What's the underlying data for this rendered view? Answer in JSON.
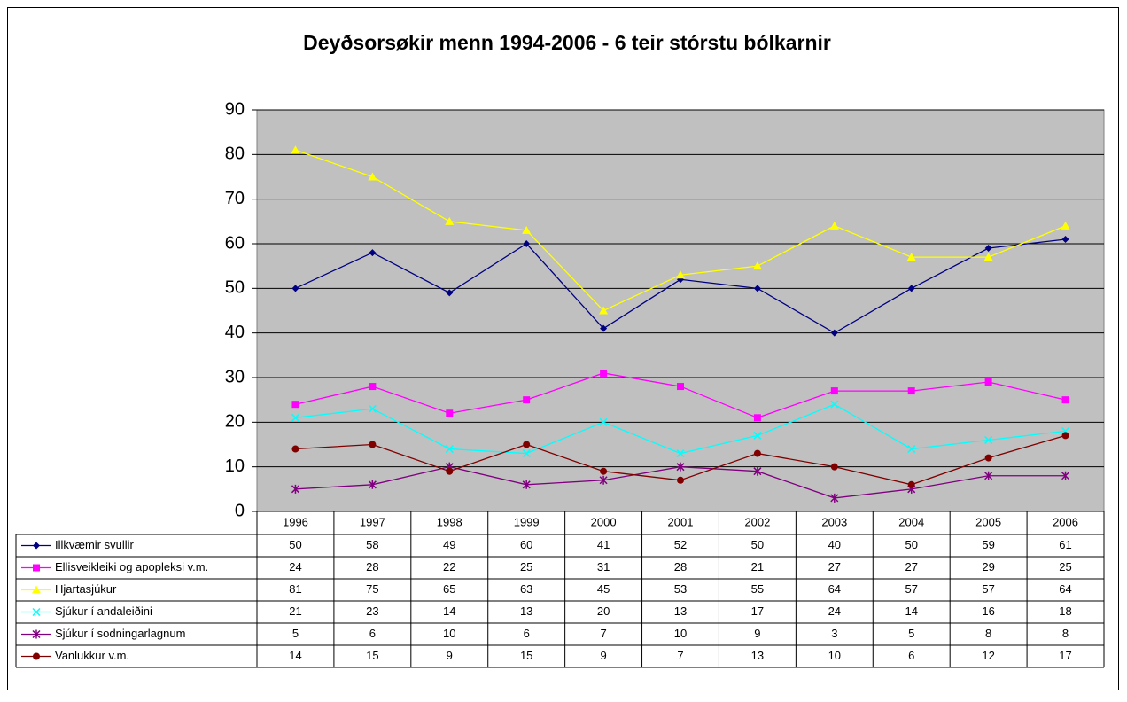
{
  "chart_data": {
    "type": "line",
    "title": "Deyðsorsøkir menn 1994-2006 - 6 teir stórstu bólkarnir",
    "categories": [
      "1996",
      "1997",
      "1998",
      "1999",
      "2000",
      "2001",
      "2002",
      "2003",
      "2004",
      "2005",
      "2006"
    ],
    "ylim": [
      0,
      90
    ],
    "yticks": [
      0,
      10,
      20,
      30,
      40,
      50,
      60,
      70,
      80,
      90
    ],
    "grid": true,
    "series": [
      {
        "name": "Illkvæmir svullir",
        "color": "#000080",
        "marker": "diamond",
        "values": [
          50,
          58,
          49,
          60,
          41,
          52,
          50,
          40,
          50,
          59,
          61
        ]
      },
      {
        "name": "Ellisveikleiki og apopleksi v.m.",
        "color": "#ff00ff",
        "marker": "square",
        "values": [
          24,
          28,
          22,
          25,
          31,
          28,
          21,
          27,
          27,
          29,
          25
        ]
      },
      {
        "name": "Hjartasjúkur",
        "color": "#ffff00",
        "marker": "triangle",
        "values": [
          81,
          75,
          65,
          63,
          45,
          53,
          55,
          64,
          57,
          57,
          64
        ]
      },
      {
        "name": "Sjúkur í andaleiðini",
        "color": "#00ffff",
        "marker": "x",
        "values": [
          21,
          23,
          14,
          13,
          20,
          13,
          17,
          24,
          14,
          16,
          18
        ]
      },
      {
        "name": "Sjúkur í sodningarlagnum",
        "color": "#800080",
        "marker": "star",
        "values": [
          5,
          6,
          10,
          6,
          7,
          10,
          9,
          3,
          5,
          8,
          8
        ]
      },
      {
        "name": "Vanlukkur v.m.",
        "color": "#800000",
        "marker": "circle",
        "values": [
          14,
          15,
          9,
          15,
          9,
          7,
          13,
          10,
          6,
          12,
          17
        ]
      }
    ]
  }
}
